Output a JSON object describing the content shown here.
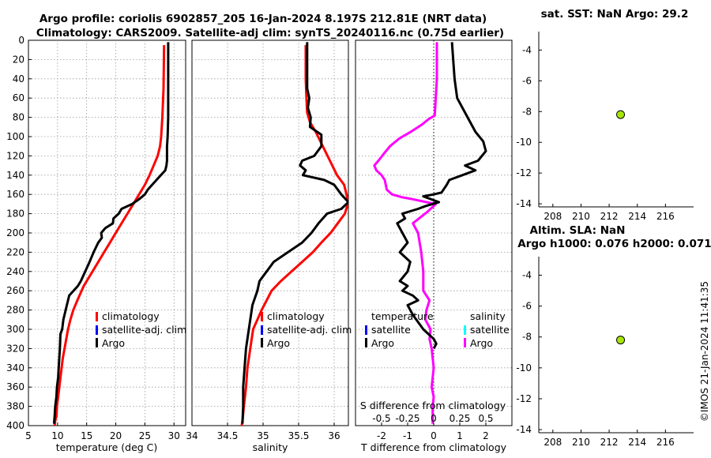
{
  "colors": {
    "climatology": "#ff0000",
    "satellite": "#0000ff",
    "argo": "#000000",
    "salinity_argo": "#ff00ff",
    "salinity_satellite": "#00ffff",
    "marker": "#a6e600"
  },
  "chart_data": [
    {
      "id": "temperature",
      "type": "line",
      "title": [
        "Argo profile: coriolis 6902857_205 16-Jan-2024 8.197S 212.81E (NRT data)",
        "Climatology: CARS2009. Satellite-adj clim: synTS_20240116.nc (0.75d earlier)"
      ],
      "xlabel": "temperature (deg C)",
      "ylabel": "",
      "xlim": [
        5,
        32
      ],
      "ylim": [
        0,
        400
      ],
      "y_reversed": true,
      "xticks": [
        5,
        10,
        15,
        20,
        25,
        30
      ],
      "yticks": [
        0,
        20,
        40,
        60,
        80,
        100,
        120,
        140,
        160,
        180,
        200,
        220,
        240,
        260,
        280,
        300,
        320,
        340,
        360,
        380,
        400
      ],
      "legend": [
        "climatology",
        "satellite-adj. clim",
        "Argo"
      ],
      "series": [
        {
          "name": "climatology",
          "x": [
            28.3,
            28.2,
            28.0,
            27.8,
            27.6,
            27.2,
            26.5,
            25.8,
            25.0,
            23.5,
            22.0,
            20.5,
            19.0,
            17.5,
            16.0,
            14.5,
            13.4,
            12.7,
            12.2,
            11.8,
            11.5,
            11.2,
            10.9,
            10.7,
            10.5,
            10.3,
            10.1,
            9.9,
            9.8,
            9.6,
            9.5
          ],
          "y": [
            5,
            50,
            80,
            100,
            110,
            120,
            130,
            140,
            150,
            165,
            180,
            195,
            210,
            225,
            240,
            255,
            270,
            280,
            290,
            300,
            310,
            320,
            330,
            340,
            350,
            360,
            370,
            380,
            390,
            395,
            400
          ]
        },
        {
          "name": "Argo",
          "x": [
            29.0,
            29.0,
            29.0,
            28.9,
            28.8,
            28.8,
            28.7,
            28.5,
            27.0,
            25.5,
            25.0,
            24.0,
            22.8,
            21.0,
            20.5,
            19.6,
            19.5,
            18.2,
            17.5,
            17.6,
            17.0,
            16.2,
            15.5,
            14.0,
            13.5,
            12.0,
            11.6,
            11.0,
            10.8,
            10.5,
            10.4,
            10.2,
            10.1,
            9.9,
            9.8,
            9.6,
            9.5,
            9.4
          ],
          "y": [
            2,
            40,
            80,
            100,
            110,
            125,
            130,
            135,
            145,
            155,
            160,
            165,
            170,
            175,
            180,
            185,
            190,
            195,
            200,
            205,
            210,
            220,
            230,
            250,
            255,
            265,
            275,
            290,
            300,
            305,
            320,
            340,
            350,
            360,
            370,
            380,
            390,
            398
          ]
        }
      ]
    },
    {
      "id": "salinity",
      "type": "line",
      "xlabel": "salinity",
      "ylabel": "",
      "xlim": [
        34,
        36.2
      ],
      "ylim": [
        0,
        400
      ],
      "y_reversed": true,
      "xticks": [
        34,
        34.5,
        35,
        35.5,
        36
      ],
      "legend": [
        "climatology",
        "satellite-adj. clim",
        "Argo"
      ],
      "series": [
        {
          "name": "climatology",
          "x": [
            35.6,
            35.6,
            35.61,
            35.62,
            35.66,
            35.74,
            35.84,
            35.94,
            36.04,
            36.14,
            36.2,
            36.15,
            36.05,
            35.95,
            35.82,
            35.7,
            35.55,
            35.4,
            35.25,
            35.12,
            35.05,
            34.98,
            34.92,
            34.86,
            34.82,
            34.78,
            34.76,
            34.73,
            34.71,
            34.7
          ],
          "y": [
            5,
            40,
            60,
            75,
            85,
            95,
            110,
            125,
            140,
            150,
            168,
            180,
            190,
            200,
            210,
            220,
            230,
            240,
            250,
            260,
            270,
            280,
            290,
            300,
            320,
            340,
            360,
            380,
            395,
            400
          ]
        },
        {
          "name": "Argo",
          "x": [
            35.62,
            35.62,
            35.62,
            35.65,
            35.63,
            35.67,
            35.66,
            35.82,
            35.82,
            35.72,
            35.55,
            35.52,
            35.6,
            35.56,
            35.86,
            36.0,
            36.1,
            36.2,
            36.1,
            35.9,
            35.78,
            35.68,
            35.55,
            35.35,
            35.15,
            35.05,
            34.95,
            34.92,
            34.85,
            34.82,
            34.8,
            34.76,
            34.74,
            34.72,
            34.72,
            34.71
          ],
          "y": [
            2,
            30,
            50,
            60,
            70,
            80,
            90,
            98,
            110,
            120,
            125,
            130,
            135,
            140,
            145,
            150,
            160,
            168,
            175,
            180,
            190,
            200,
            210,
            220,
            230,
            240,
            250,
            260,
            275,
            290,
            300,
            320,
            340,
            360,
            380,
            398
          ]
        }
      ]
    },
    {
      "id": "differences",
      "type": "line",
      "xlabel": "T difference from climatology",
      "xlabel_top": "S difference from climatology",
      "xlim": [
        -3,
        3
      ],
      "xlim_salinity": [
        -0.75,
        0.75
      ],
      "ylim": [
        0,
        400
      ],
      "y_reversed": true,
      "xticks": [
        -2,
        -1,
        0,
        1,
        2
      ],
      "xticks_salinity": [
        "-0.5",
        "-0.25",
        "0",
        "0.25",
        "0.5"
      ],
      "legend_temperature": {
        "header": "temperature",
        "entries": [
          "satellite",
          "Argo"
        ]
      },
      "legend_salinity": {
        "header": "salinity",
        "entries": [
          "satellite",
          "Argo"
        ]
      },
      "series": [
        {
          "name": "temperature Argo",
          "x": [
            0.7,
            0.8,
            0.9,
            1.3,
            1.6,
            1.9,
            2.0,
            1.7,
            1.2,
            1.6,
            1.1,
            0.6,
            0.5,
            0.3,
            0.0,
            -0.4,
            0.2,
            -0.3,
            -0.6,
            -1.2,
            -1.1,
            -1.4,
            -1.3,
            -1.2,
            -1.0,
            -1.3,
            -0.9,
            -1.0,
            -1.3,
            -1.0,
            -1.2,
            -0.8,
            -0.6,
            -1.0,
            -0.8,
            -0.4,
            -0.2,
            0.0,
            0.1,
            0.0
          ],
          "y": [
            2,
            40,
            60,
            80,
            95,
            105,
            115,
            125,
            130,
            135,
            140,
            145,
            150,
            158,
            160,
            162,
            168,
            172,
            175,
            180,
            185,
            190,
            195,
            200,
            210,
            220,
            230,
            240,
            250,
            255,
            260,
            265,
            270,
            275,
            285,
            300,
            305,
            310,
            315,
            320
          ]
        },
        {
          "name": "salinity Argo",
          "x": [
            0.03,
            0.03,
            0.02,
            0.01,
            -0.05,
            -0.12,
            -0.22,
            -0.33,
            -0.42,
            -0.48,
            -0.53,
            -0.57,
            -0.55,
            -0.5,
            -0.47,
            -0.46,
            -0.45,
            -0.4,
            -0.3,
            -0.2,
            -0.07,
            0.02,
            -0.06,
            -0.2,
            -0.15,
            -0.12,
            -0.1,
            -0.1,
            -0.04,
            -0.07,
            -0.08,
            -0.03,
            -0.04,
            -0.02,
            -0.01,
            0.0,
            -0.02,
            0.0,
            -0.01,
            -0.01
          ],
          "y": [
            2,
            40,
            60,
            78,
            82,
            88,
            95,
            102,
            110,
            118,
            125,
            130,
            135,
            140,
            145,
            150,
            155,
            160,
            163,
            165,
            168,
            170,
            178,
            190,
            200,
            220,
            240,
            260,
            270,
            280,
            290,
            300,
            310,
            320,
            330,
            340,
            360,
            370,
            380,
            398
          ]
        }
      ]
    },
    {
      "id": "sst_map",
      "type": "scatter",
      "title": "sat. SST: NaN Argo: 29.2",
      "xlim": [
        207,
        218
      ],
      "ylim": [
        -14.2,
        -2.8
      ],
      "xticks": [
        208,
        210,
        212,
        214,
        216
      ],
      "yticks": [
        -4,
        -6,
        -8,
        -10,
        -12,
        -14
      ],
      "points": [
        {
          "x": 212.81,
          "y": -8.197
        }
      ]
    },
    {
      "id": "sla_map",
      "type": "scatter",
      "title": [
        "Altim. SLA: NaN",
        "Argo h1000: 0.076 h2000: 0.071"
      ],
      "xlim": [
        207,
        218
      ],
      "ylim": [
        -14.2,
        -2.8
      ],
      "xticks": [
        208,
        210,
        212,
        214,
        216
      ],
      "yticks": [
        -4,
        -6,
        -8,
        -10,
        -12,
        -14
      ],
      "points": [
        {
          "x": 212.81,
          "y": -8.197
        }
      ]
    }
  ],
  "watermark": "©IMOS 21-Jan-2024 11:41:35"
}
